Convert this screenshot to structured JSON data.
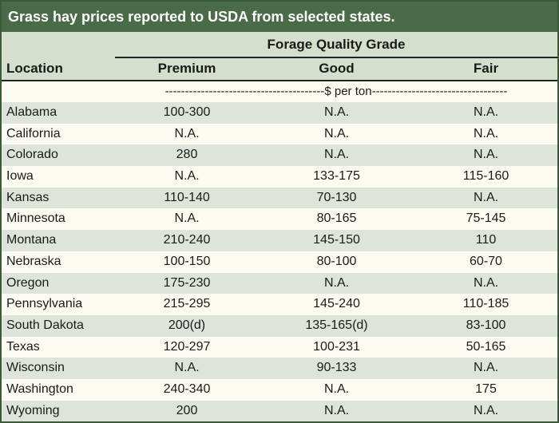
{
  "title": "Grass hay prices reported to USDA from selected states.",
  "header": {
    "group_label": "Forage Quality Grade",
    "location_label": "Location",
    "premium_label": "Premium",
    "good_label": "Good",
    "fair_label": "Fair"
  },
  "units_label": "----------------------------------------$ per ton----------------------------------",
  "rows": [
    {
      "location": "Alabama",
      "premium": "100-300",
      "good": "N.A.",
      "fair": "N.A."
    },
    {
      "location": "California",
      "premium": "N.A.",
      "good": "N.A.",
      "fair": "N.A."
    },
    {
      "location": "Colorado",
      "premium": "280",
      "good": "N.A.",
      "fair": "N.A."
    },
    {
      "location": "Iowa",
      "premium": "N.A.",
      "good": "133-175",
      "fair": "115-160"
    },
    {
      "location": "Kansas",
      "premium": "110-140",
      "good": "70-130",
      "fair": "N.A."
    },
    {
      "location": "Minnesota",
      "premium": "N.A.",
      "good": "80-165",
      "fair": "75-145"
    },
    {
      "location": "Montana",
      "premium": "210-240",
      "good": "145-150",
      "fair": "110"
    },
    {
      "location": "Nebraska",
      "premium": "100-150",
      "good": "80-100",
      "fair": "60-70"
    },
    {
      "location": "Oregon",
      "premium": "175-230",
      "good": "N.A.",
      "fair": "N.A."
    },
    {
      "location": "Pennsylvania",
      "premium": "215-295",
      "good": "145-240",
      "fair": "110-185"
    },
    {
      "location": "South Dakota",
      "premium": "200(d)",
      "good": "135-165(d)",
      "fair": "83-100"
    },
    {
      "location": "Texas",
      "premium": "120-297",
      "good": "100-231",
      "fair": "50-165"
    },
    {
      "location": "Wisconsin",
      "premium": "N.A.",
      "good": "90-133",
      "fair": "N.A."
    },
    {
      "location": "Washington",
      "premium": "240-340",
      "good": "N.A.",
      "fair": "175"
    },
    {
      "location": "Wyoming",
      "premium": "200",
      "good": "N.A.",
      "fair": "N.A."
    }
  ]
}
